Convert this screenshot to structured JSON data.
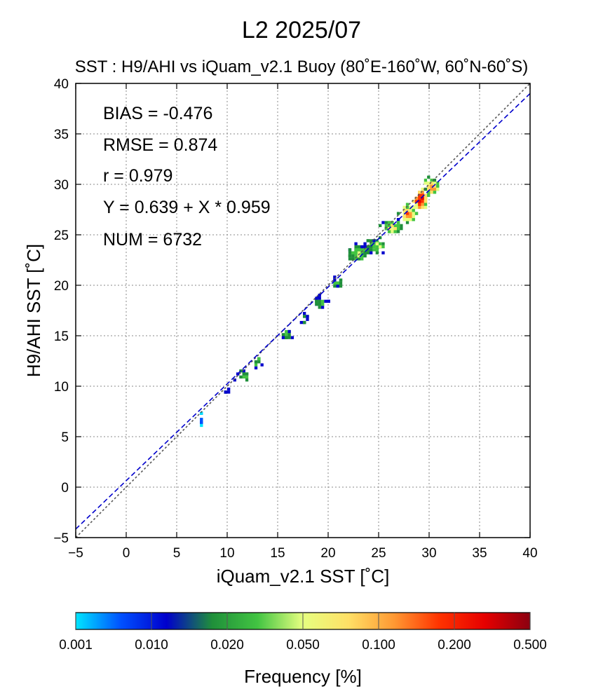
{
  "chart_data": {
    "type": "heatmap",
    "title": "L2  2025/07",
    "subtitle": "SST : H9/AHI vs iQuam_v2.1 Buoy  (80˚E-160˚W, 60˚N-60˚S)",
    "xlabel": "iQuam_v2.1 SST [˚C]",
    "ylabel": "H9/AHI SST [˚C]",
    "xlim": [
      -5,
      40
    ],
    "ylim": [
      -5,
      40
    ],
    "xticks": [
      "−5",
      "0",
      "5",
      "10",
      "15",
      "20",
      "25",
      "30",
      "35",
      "40"
    ],
    "yticks": [
      "−5",
      "0",
      "5",
      "10",
      "15",
      "20",
      "25",
      "30",
      "35",
      "40"
    ],
    "grid": true,
    "stats": {
      "bias": "BIAS = -0.476",
      "rmse": "RMSE = 0.874",
      "r": "r = 0.979",
      "fit": "Y = 0.639 + X * 0.959",
      "num": "NUM = 6732"
    },
    "regression": {
      "intercept": 0.639,
      "slope": 0.959,
      "color": "#0000cc"
    },
    "identity_line_color": "#555555",
    "colorbar": {
      "label": "Frequency [%]",
      "ticks": [
        "0.001",
        "0.010",
        "0.020",
        "0.050",
        "0.100",
        "0.200",
        "0.500"
      ],
      "colors": [
        "#00e5ff",
        "#0050ff",
        "#0000cc",
        "#1f8f3a",
        "#42c442",
        "#e6ff80",
        "#ffe066",
        "#ff9933",
        "#ff3300",
        "#e60000",
        "#8b0010"
      ]
    },
    "clusters": [
      {
        "x": 7.3,
        "y": 6.8,
        "sx": 0.15,
        "sy": 0.8,
        "n": 8,
        "level": 0.1
      },
      {
        "x": 9.8,
        "y": 9.7,
        "sx": 0.3,
        "sy": 0.3,
        "n": 6,
        "level": 0.3
      },
      {
        "x": 11.5,
        "y": 11.2,
        "sx": 0.8,
        "sy": 0.7,
        "n": 14,
        "level": 0.35
      },
      {
        "x": 13.0,
        "y": 12.5,
        "sx": 0.5,
        "sy": 0.8,
        "n": 10,
        "level": 0.35
      },
      {
        "x": 15.8,
        "y": 15.3,
        "sx": 0.6,
        "sy": 0.5,
        "n": 14,
        "level": 0.4
      },
      {
        "x": 17.5,
        "y": 16.8,
        "sx": 0.5,
        "sy": 0.7,
        "n": 10,
        "level": 0.3
      },
      {
        "x": 19.0,
        "y": 18.5,
        "sx": 0.8,
        "sy": 0.8,
        "n": 20,
        "level": 0.35
      },
      {
        "x": 20.8,
        "y": 20.4,
        "sx": 0.6,
        "sy": 0.6,
        "n": 16,
        "level": 0.35
      },
      {
        "x": 22.8,
        "y": 23.3,
        "sx": 1.2,
        "sy": 0.9,
        "n": 70,
        "level": 0.45
      },
      {
        "x": 24.5,
        "y": 24.1,
        "sx": 1.0,
        "sy": 0.8,
        "n": 60,
        "level": 0.45
      },
      {
        "x": 26.2,
        "y": 25.9,
        "sx": 0.9,
        "sy": 0.7,
        "n": 70,
        "level": 0.55
      },
      {
        "x": 27.8,
        "y": 27.2,
        "sx": 0.8,
        "sy": 0.9,
        "n": 90,
        "level": 0.7
      },
      {
        "x": 29.0,
        "y": 28.6,
        "sx": 0.7,
        "sy": 1.0,
        "n": 120,
        "level": 0.9
      },
      {
        "x": 30.1,
        "y": 29.9,
        "sx": 0.7,
        "sy": 0.9,
        "n": 80,
        "level": 0.7
      }
    ]
  }
}
